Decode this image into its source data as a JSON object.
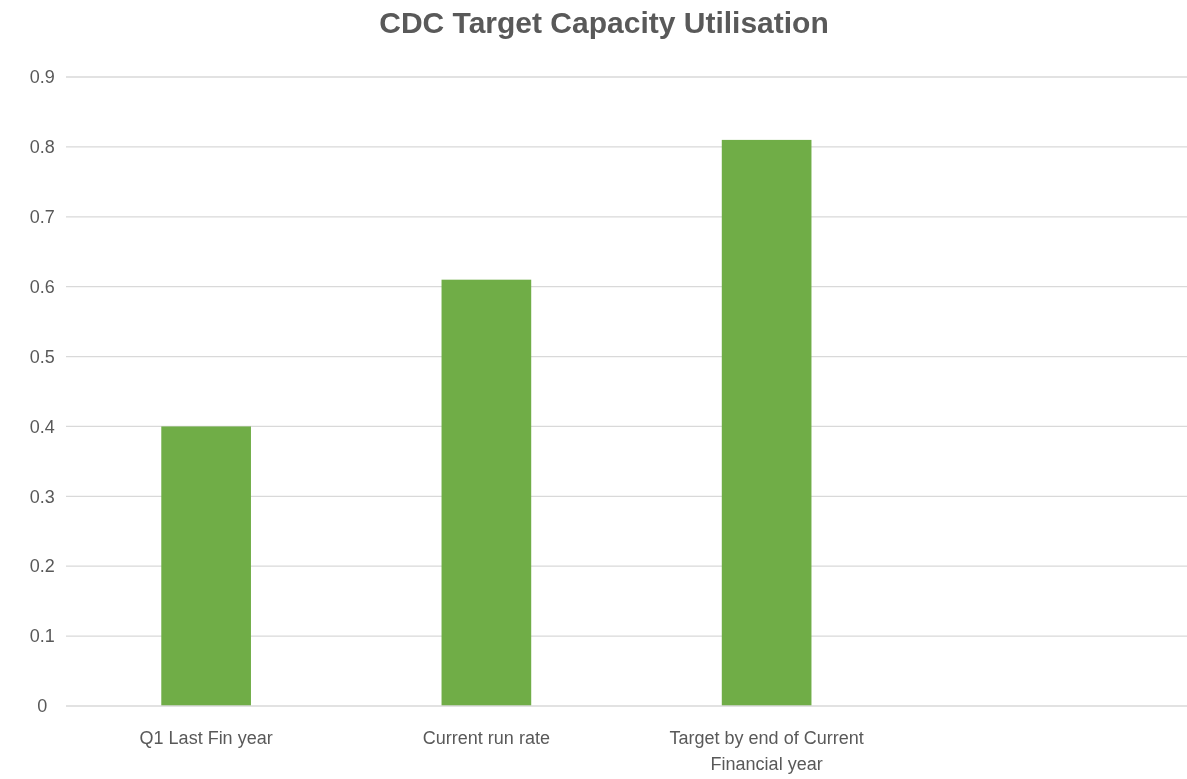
{
  "chart_data": {
    "type": "bar",
    "title": "CDC Target Capacity Utilisation",
    "categories": [
      "Q1 Last Fin year",
      "Current run rate",
      "Target by end of Current Financial year",
      null
    ],
    "values": [
      0.4,
      0.61,
      0.81,
      null
    ],
    "color": "#70ad47",
    "ylim": [
      0,
      0.9
    ],
    "yticks": [
      0,
      0.1,
      0.2,
      0.3,
      0.4,
      0.5,
      0.6,
      0.7,
      0.8,
      0.9
    ],
    "grid": "y"
  }
}
